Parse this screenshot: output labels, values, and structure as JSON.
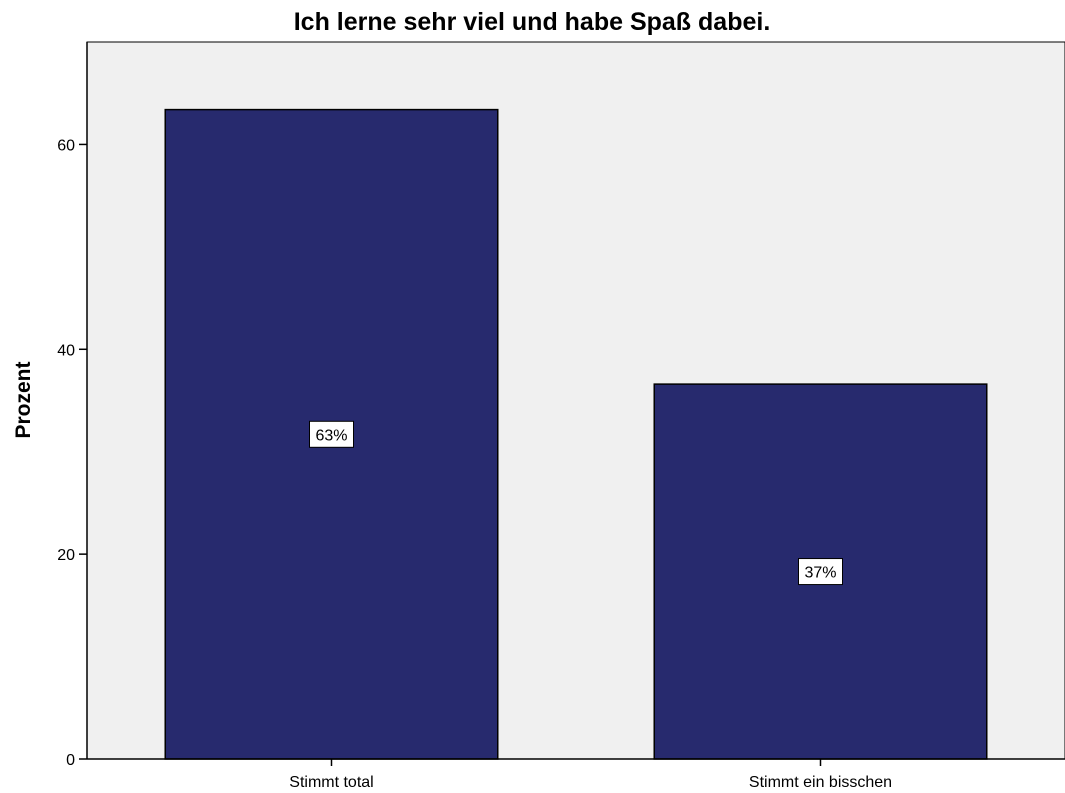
{
  "chart_data": {
    "type": "bar",
    "title": "Ich lerne sehr viel und habe Spaß dabei.",
    "xlabel": "",
    "ylabel": "Prozent",
    "categories": [
      "Stimmt total",
      "Stimmt ein bisschen"
    ],
    "values": [
      63.4,
      36.6
    ],
    "data_labels": [
      "63%",
      "37%"
    ],
    "ylim": [
      0,
      70
    ],
    "yticks": [
      0,
      20,
      40,
      60
    ],
    "grid": false,
    "colors": {
      "bar": "#272A6E",
      "plot_background": "#F0F0F0"
    }
  }
}
